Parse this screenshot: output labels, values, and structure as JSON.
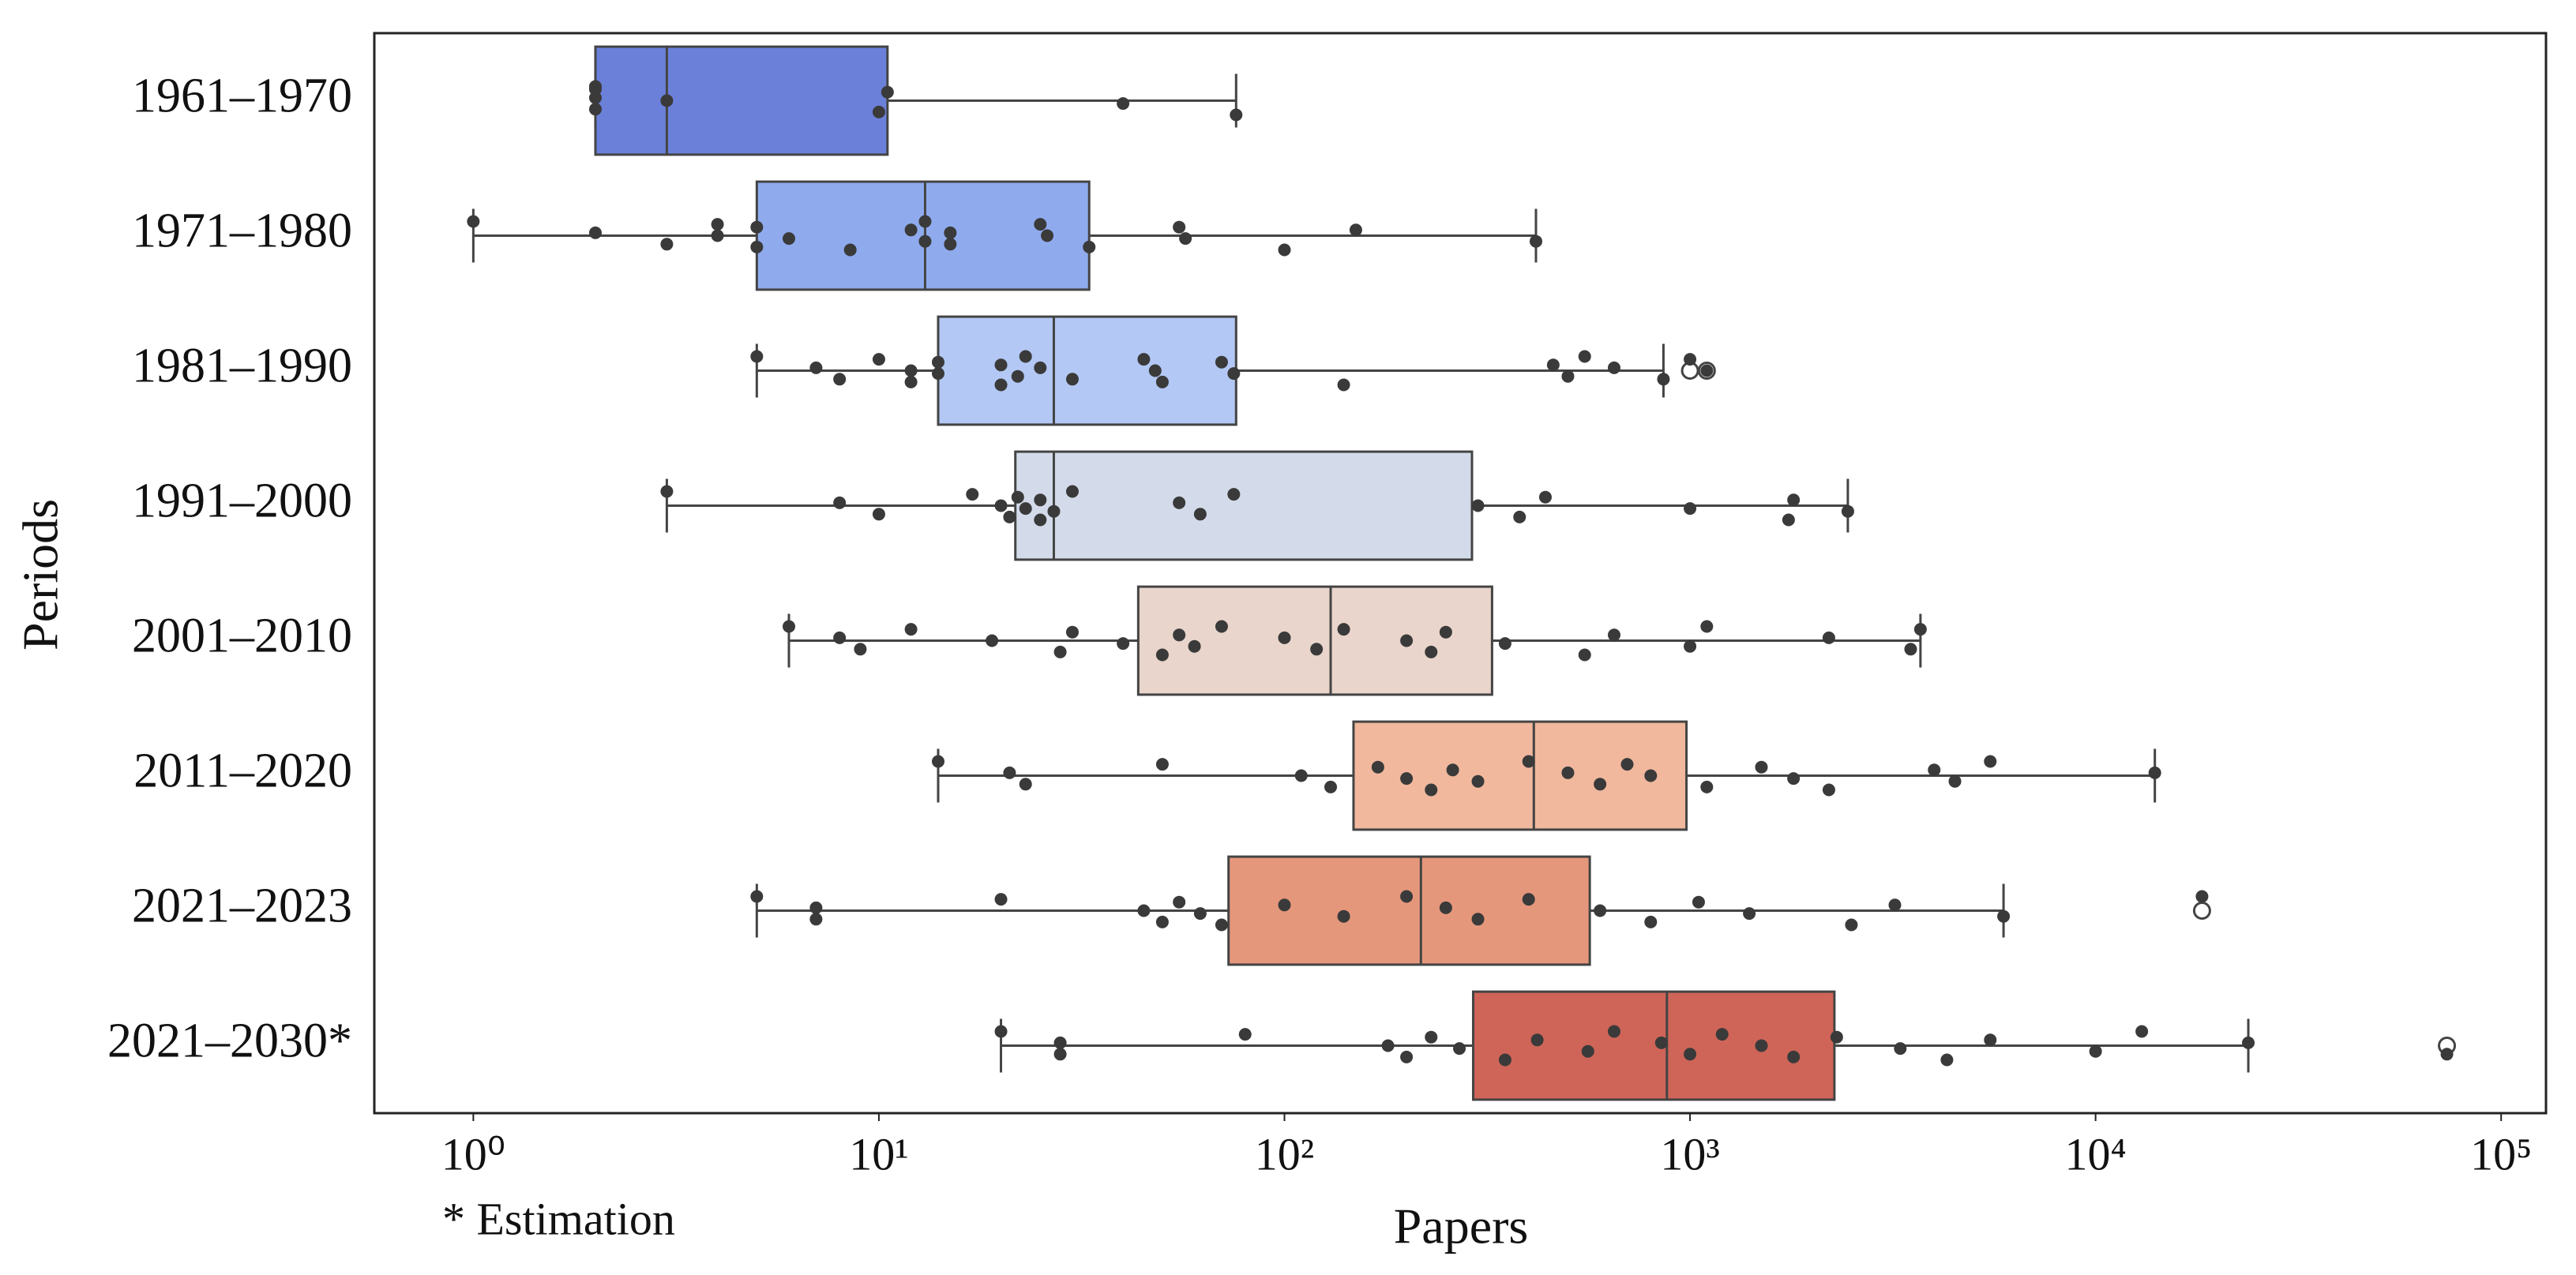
{
  "chart_data": {
    "type": "boxplot",
    "orientation": "horizontal",
    "x_scale": "log",
    "xlabel": "Papers",
    "ylabel": "Periods",
    "footnote": "* Estimation",
    "xlim": [
      0.57,
      129000
    ],
    "xticks": [
      {
        "value": 1,
        "label": "10⁰"
      },
      {
        "value": 10,
        "label": "10¹"
      },
      {
        "value": 100,
        "label": "10²"
      },
      {
        "value": 1000,
        "label": "10³"
      },
      {
        "value": 10000,
        "label": "10⁴"
      },
      {
        "value": 100000,
        "label": "10⁵"
      }
    ],
    "categories": [
      "1961–1970",
      "1971–1980",
      "1981–1990",
      "1991–2000",
      "2001–2010",
      "2011–2020",
      "2021–2023",
      "2021–2030*"
    ],
    "boxes": [
      {
        "color": "#6b80d9",
        "low": 2,
        "q1": 2,
        "median": 3,
        "q3": 10.5,
        "high": 76,
        "outliers": [],
        "points": [
          2,
          2,
          2,
          2,
          3,
          10,
          10.5,
          40,
          76
        ]
      },
      {
        "color": "#8fabee",
        "low": 1,
        "q1": 5,
        "median": 13,
        "q3": 33,
        "high": 417,
        "outliers": [],
        "points": [
          1,
          2,
          3,
          4,
          4,
          5,
          5,
          6,
          8.5,
          12,
          13,
          13,
          15,
          15,
          25,
          26,
          33,
          55,
          57,
          100,
          150,
          417
        ]
      },
      {
        "color": "#b3c8f4",
        "low": 5,
        "q1": 14,
        "median": 27,
        "q3": 76,
        "high": 860,
        "outliers": [
          1000,
          1100
        ],
        "points": [
          5,
          7,
          8,
          10,
          12,
          12,
          14,
          14,
          20,
          20,
          22,
          23,
          25,
          30,
          45,
          48,
          50,
          70,
          75,
          140,
          460,
          500,
          550,
          650,
          860,
          1000,
          1100
        ]
      },
      {
        "color": "#d3dbea",
        "low": 3,
        "q1": 21.7,
        "median": 27,
        "q3": 290,
        "high": 2450,
        "outliers": [],
        "points": [
          3,
          8,
          10,
          17,
          20,
          21,
          22,
          23,
          25,
          25,
          27,
          30,
          55,
          62,
          75,
          300,
          380,
          440,
          1000,
          1750,
          1800,
          2450
        ]
      },
      {
        "color": "#e9d5cb",
        "low": 6,
        "q1": 43.6,
        "median": 130,
        "q3": 325,
        "high": 3700,
        "outliers": [],
        "points": [
          6,
          8,
          9,
          12,
          19,
          28,
          30,
          40,
          50,
          55,
          60,
          70,
          100,
          120,
          140,
          200,
          230,
          250,
          350,
          550,
          650,
          1000,
          1100,
          2200,
          3500,
          3700
        ]
      },
      {
        "color": "#f1b89e",
        "low": 14,
        "q1": 148,
        "median": 412,
        "q3": 980,
        "high": 14000,
        "outliers": [],
        "points": [
          14,
          21,
          23,
          50,
          110,
          130,
          170,
          200,
          230,
          260,
          300,
          400,
          500,
          600,
          700,
          800,
          1100,
          1500,
          1800,
          2200,
          4000,
          4500,
          5500,
          14000
        ]
      },
      {
        "color": "#e5977c",
        "low": 5,
        "q1": 72.8,
        "median": 217,
        "q3": 566,
        "high": 5930,
        "outliers": [
          18300
        ],
        "points": [
          5,
          7,
          7,
          20,
          45,
          50,
          55,
          62,
          70,
          100,
          140,
          200,
          250,
          300,
          400,
          600,
          800,
          1050,
          1400,
          2500,
          3200,
          5930,
          18300
        ]
      },
      {
        "color": "#cf6558",
        "low": 20,
        "q1": 292,
        "median": 877,
        "q3": 2270,
        "high": 23800,
        "outliers": [
          73500
        ],
        "points": [
          20,
          28,
          28,
          80,
          180,
          200,
          230,
          270,
          350,
          420,
          560,
          650,
          850,
          1000,
          1200,
          1500,
          1800,
          2300,
          3300,
          4300,
          5500,
          10000,
          13000,
          23800,
          73500
        ]
      }
    ]
  }
}
